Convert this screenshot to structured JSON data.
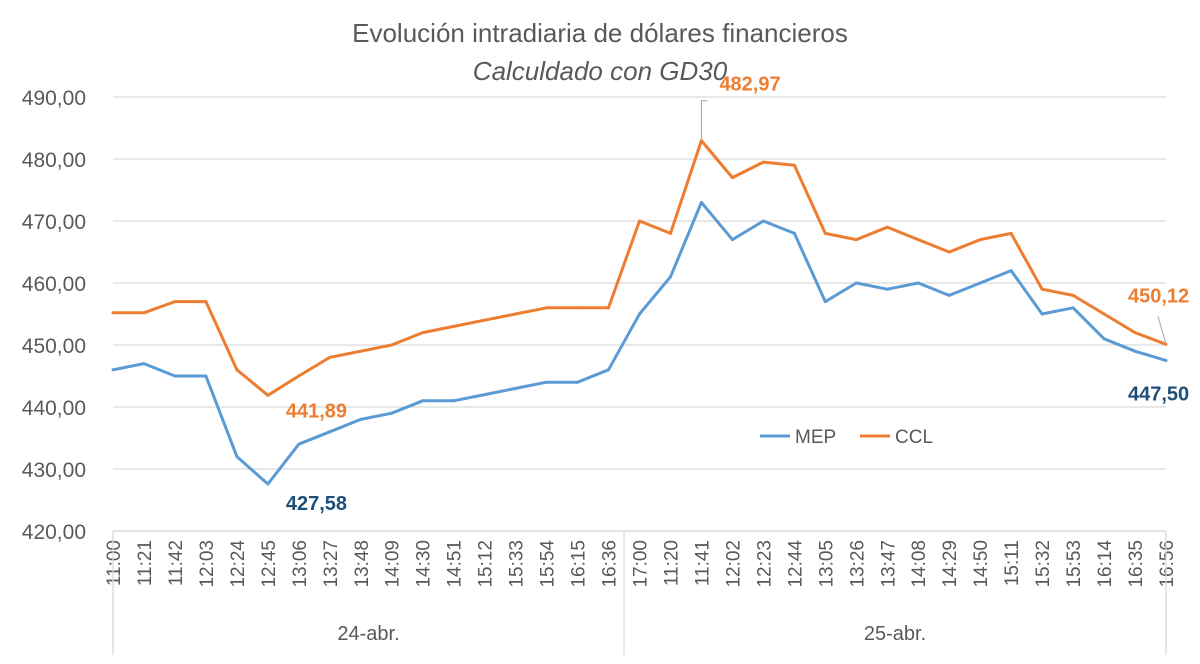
{
  "chart_data": {
    "type": "line",
    "title": "Evolución intradiaria de dólares financieros",
    "subtitle": "Calculdado con GD30",
    "xlabel": "",
    "ylabel": "",
    "ylim": [
      420,
      490
    ],
    "yticks": [
      "420,00",
      "430,00",
      "440,00",
      "450,00",
      "460,00",
      "470,00",
      "480,00",
      "490,00"
    ],
    "grid": true,
    "legend_position": "center-right",
    "x": [
      "11:00",
      "11:21",
      "11:42",
      "12:03",
      "12:24",
      "12:45",
      "13:06",
      "13:27",
      "13:48",
      "14:09",
      "14:30",
      "14:51",
      "15:12",
      "15:33",
      "15:54",
      "16:15",
      "16:36",
      "17:00",
      "11:20",
      "11:41",
      "12:02",
      "12:23",
      "12:44",
      "13:05",
      "13:26",
      "13:47",
      "14:08",
      "14:29",
      "14:50",
      "15:11",
      "15:32",
      "15:53",
      "16:14",
      "16:35",
      "16:56"
    ],
    "groups": [
      {
        "label": "24-abr.",
        "count": 17
      },
      {
        "label": "25-abr.",
        "count": 18
      }
    ],
    "series": [
      {
        "name": "MEP",
        "color": "#5B9BD5",
        "values": [
          446,
          447,
          445,
          445,
          432,
          427.58,
          434,
          436,
          438,
          439,
          441,
          441,
          442,
          443,
          444,
          444,
          446,
          455,
          461,
          473,
          467,
          470,
          468,
          457,
          460,
          459,
          460,
          458,
          460,
          462,
          455,
          456,
          451,
          449,
          447.5
        ]
      },
      {
        "name": "CCL",
        "color": "#ED7D31",
        "values": [
          455.2,
          455.2,
          457,
          457,
          446,
          441.89,
          445,
          448,
          449,
          450,
          452,
          453,
          454,
          455,
          456,
          456,
          456,
          470,
          468,
          482.97,
          477,
          479.5,
          479,
          468,
          467,
          469,
          467,
          465,
          467,
          468,
          459,
          458,
          455,
          452,
          450.12
        ]
      }
    ],
    "annotations": [
      {
        "text": "427,58",
        "series": "MEP",
        "x": "12:45",
        "color": "#1F4E79"
      },
      {
        "text": "441,89",
        "series": "CCL",
        "x": "12:45",
        "color": "#ED7D31"
      },
      {
        "text": "482,97",
        "series": "CCL",
        "x": "11:41",
        "color": "#ED7D31"
      },
      {
        "text": "450,12",
        "series": "CCL",
        "x": "16:56",
        "color": "#ED7D31"
      },
      {
        "text": "447,50",
        "series": "MEP",
        "x": "16:56",
        "color": "#1F4E79"
      }
    ]
  }
}
